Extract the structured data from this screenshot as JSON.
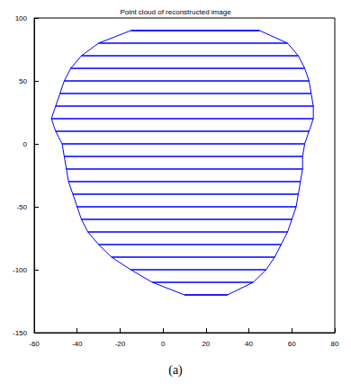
{
  "chart_data": {
    "type": "line",
    "title": "Point cloud of reconstructed image",
    "caption": "(a)",
    "color": "#0000ff",
    "grid": false,
    "xlim": [
      -60,
      80
    ],
    "xticks": [
      -60,
      -40,
      -20,
      0,
      20,
      40,
      60,
      80
    ],
    "ylim": [
      -150,
      100
    ],
    "yticks": [
      -150,
      -100,
      -50,
      0,
      50,
      100
    ],
    "segments": {
      "y": [
        90,
        80,
        70,
        60,
        50,
        40,
        30,
        20,
        10,
        0,
        -10,
        -20,
        -30,
        -40,
        -50,
        -60,
        -70,
        -80,
        -90,
        -100,
        -110,
        -120
      ],
      "x_start": [
        -15,
        -30,
        -38,
        -43,
        -46,
        -48,
        -50,
        -52,
        -50,
        -47,
        -46,
        -45,
        -44,
        -42,
        -40,
        -38,
        -35,
        -30,
        -24,
        -15,
        -5,
        10
      ],
      "x_end": [
        45,
        58,
        63,
        66,
        68,
        69,
        70,
        70,
        68,
        66,
        65,
        65,
        64,
        63,
        62,
        60,
        58,
        55,
        52,
        48,
        42,
        30
      ]
    }
  }
}
